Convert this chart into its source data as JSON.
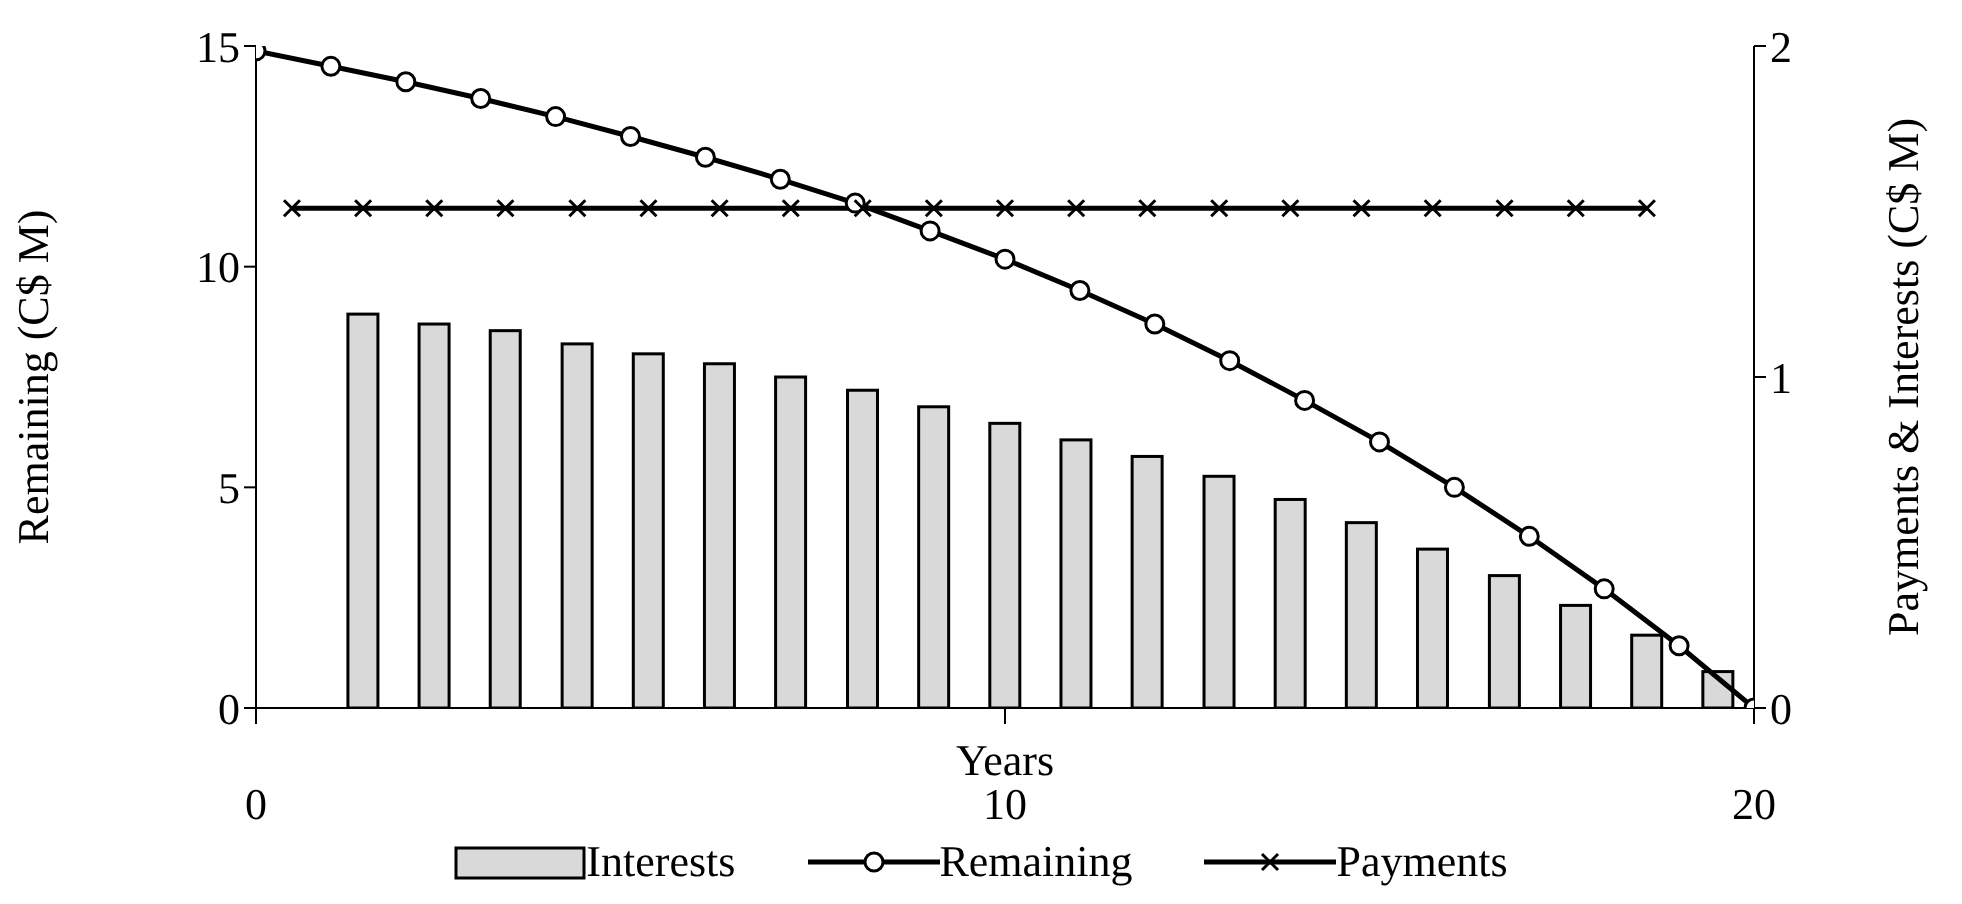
{
  "chart_data": {
    "type": "line",
    "xlabel": "Years",
    "ylabel": "Remaining (C$ M)",
    "y2label": "Payments & Interests (C$ M)",
    "xlim": [
      0,
      20
    ],
    "xticks": [
      0,
      10,
      20
    ],
    "ylim": [
      0,
      15
    ],
    "yticks": [
      0,
      5,
      10,
      15
    ],
    "y2lim": [
      0,
      2
    ],
    "y2ticks": [
      0,
      1,
      2
    ],
    "grid": false,
    "legend": "bottom",
    "series": [
      {
        "name": "Interests",
        "type": "bar",
        "axis": "y2",
        "color": "#d9d9d9",
        "x": [
          1.43,
          2.38,
          3.33,
          4.29,
          5.24,
          6.19,
          7.14,
          8.1,
          9.05,
          10.0,
          10.95,
          11.9,
          12.86,
          13.81,
          14.76,
          15.71,
          16.67,
          17.62,
          18.57,
          19.52
        ],
        "values": [
          1.19,
          1.16,
          1.14,
          1.1,
          1.07,
          1.04,
          1.0,
          0.96,
          0.91,
          0.86,
          0.81,
          0.76,
          0.7,
          0.63,
          0.56,
          0.48,
          0.4,
          0.31,
          0.22,
          0.11
        ]
      },
      {
        "name": "Remaining",
        "color": "#000000",
        "marker": "circle",
        "x": [
          0,
          1,
          2,
          3,
          4,
          5,
          6,
          7,
          8,
          9,
          10,
          11,
          12,
          13,
          14,
          15,
          16,
          17,
          18,
          19,
          20
        ],
        "values": [
          14.89,
          14.54,
          14.19,
          13.81,
          13.4,
          12.95,
          12.48,
          11.98,
          11.44,
          10.81,
          10.17,
          9.46,
          8.7,
          7.87,
          6.97,
          6.03,
          5.0,
          3.89,
          2.7,
          1.41,
          0
        ]
      },
      {
        "name": "Payments",
        "axis": "y2",
        "color": "#000000",
        "marker": "cross",
        "x": [
          0.48,
          1.43,
          2.38,
          3.33,
          4.29,
          5.24,
          6.19,
          7.14,
          8.1,
          9.05,
          10.0,
          10.95,
          11.9,
          12.86,
          13.81,
          14.76,
          15.71,
          16.67,
          17.62,
          18.57
        ],
        "values": [
          1.51,
          1.51,
          1.51,
          1.51,
          1.51,
          1.51,
          1.51,
          1.51,
          1.51,
          1.51,
          1.51,
          1.51,
          1.51,
          1.51,
          1.51,
          1.51,
          1.51,
          1.51,
          1.51,
          1.51
        ]
      }
    ]
  }
}
